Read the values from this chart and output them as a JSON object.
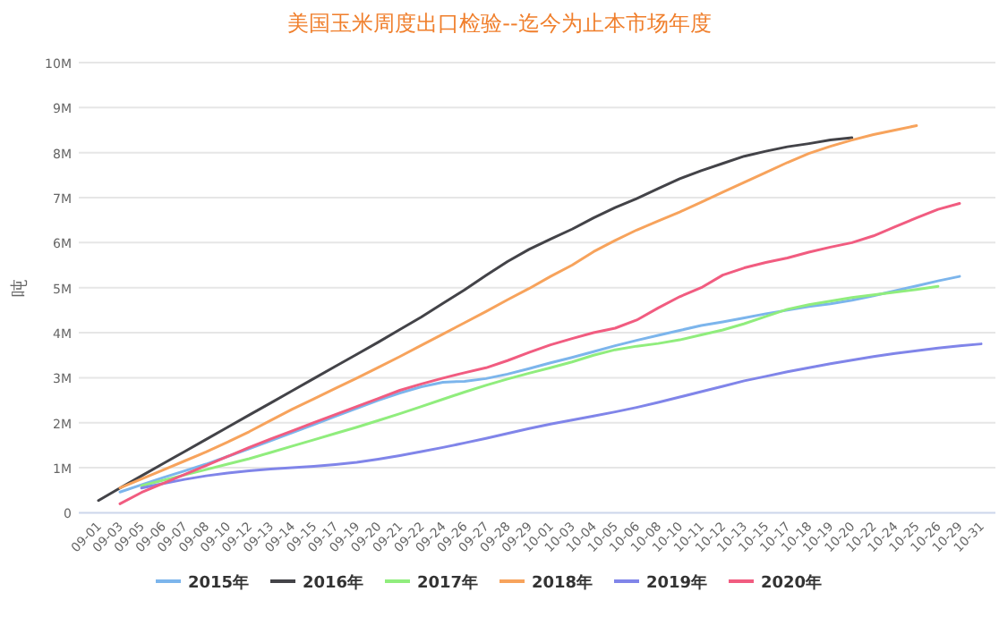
{
  "chart_data": {
    "type": "line",
    "title": "美国玉米周度出口检验--迄今为止本市场年度",
    "ylabel": "吨",
    "categories": [
      "09-01",
      "09-03",
      "09-05",
      "09-06",
      "09-07",
      "09-08",
      "09-10",
      "09-12",
      "09-13",
      "09-14",
      "09-15",
      "09-17",
      "09-19",
      "09-20",
      "09-21",
      "09-22",
      "09-24",
      "09-26",
      "09-27",
      "09-28",
      "09-29",
      "10-01",
      "10-03",
      "10-04",
      "10-05",
      "10-06",
      "10-08",
      "10-10",
      "10-11",
      "10-12",
      "10-13",
      "10-15",
      "10-17",
      "10-18",
      "10-19",
      "10-20",
      "10-22",
      "10-24",
      "10-25",
      "10-26",
      "10-29",
      "10-31"
    ],
    "ylim": [
      0,
      10000000
    ],
    "yticks": [
      0,
      {
        "value": 1000000,
        "label": "1M"
      },
      {
        "value": 2000000,
        "label": "2M"
      },
      {
        "value": 3000000,
        "label": "3M"
      },
      {
        "value": 4000000,
        "label": "4M"
      },
      {
        "value": 5000000,
        "label": "5M"
      },
      {
        "value": 6000000,
        "label": "6M"
      },
      {
        "value": 7000000,
        "label": "7M"
      },
      {
        "value": 8000000,
        "label": "8M"
      },
      {
        "value": 9000000,
        "label": "9M"
      },
      {
        "value": 10000000,
        "label": "10M"
      }
    ],
    "grid": "y",
    "legend": "bottom",
    "marker": "none",
    "series": [
      {
        "name": "2015年",
        "color": "#7cb5ec",
        "values": [
          null,
          460000,
          620000,
          780000,
          930000,
          1080000,
          1250000,
          1420000,
          1600000,
          1780000,
          1960000,
          2140000,
          2320000,
          2500000,
          2660000,
          2800000,
          2900000,
          2920000,
          2980000,
          3080000,
          3200000,
          3330000,
          3450000,
          3580000,
          3710000,
          3830000,
          3940000,
          4050000,
          4160000,
          4240000,
          4330000,
          4420000,
          4500000,
          4580000,
          4640000,
          4720000,
          4820000,
          4930000,
          5040000,
          5150000,
          5250000,
          null
        ]
      },
      {
        "name": "2016年",
        "color": "#434348",
        "values": [
          270000,
          550000,
          820000,
          1090000,
          1360000,
          1630000,
          1900000,
          2170000,
          2440000,
          2710000,
          2980000,
          3250000,
          3520000,
          3790000,
          4070000,
          4350000,
          4650000,
          4950000,
          5270000,
          5580000,
          5850000,
          6080000,
          6300000,
          6550000,
          6780000,
          6980000,
          7200000,
          7420000,
          7600000,
          7760000,
          7920000,
          8030000,
          8130000,
          8200000,
          8280000,
          8330000,
          null,
          null,
          null,
          null,
          null,
          null
        ]
      },
      {
        "name": "2017年",
        "color": "#90ed7d",
        "values": [
          null,
          null,
          600000,
          720000,
          840000,
          960000,
          1080000,
          1200000,
          1340000,
          1480000,
          1620000,
          1760000,
          1900000,
          2050000,
          2200000,
          2360000,
          2520000,
          2680000,
          2830000,
          2970000,
          3100000,
          3220000,
          3350000,
          3500000,
          3620000,
          3700000,
          3760000,
          3840000,
          3950000,
          4060000,
          4200000,
          4360000,
          4520000,
          4620000,
          4700000,
          4780000,
          4840000,
          4900000,
          4960000,
          5030000,
          null,
          null
        ]
      },
      {
        "name": "2018年",
        "color": "#f7a35c",
        "values": [
          null,
          550000,
          750000,
          950000,
          1150000,
          1350000,
          1570000,
          1800000,
          2050000,
          2300000,
          2530000,
          2760000,
          2990000,
          3230000,
          3470000,
          3720000,
          3970000,
          4220000,
          4470000,
          4730000,
          4980000,
          5250000,
          5500000,
          5800000,
          6050000,
          6280000,
          6480000,
          6680000,
          6900000,
          7120000,
          7340000,
          7560000,
          7780000,
          7980000,
          8140000,
          8280000,
          8400000,
          8500000,
          8600000,
          null,
          null,
          null
        ]
      },
      {
        "name": "2019年",
        "color": "#8085e9",
        "values": [
          null,
          null,
          550000,
          650000,
          740000,
          820000,
          880000,
          930000,
          970000,
          1000000,
          1030000,
          1070000,
          1120000,
          1190000,
          1270000,
          1360000,
          1450000,
          1550000,
          1650000,
          1760000,
          1870000,
          1970000,
          2060000,
          2150000,
          2240000,
          2340000,
          2450000,
          2570000,
          2690000,
          2810000,
          2930000,
          3030000,
          3130000,
          3220000,
          3310000,
          3390000,
          3470000,
          3540000,
          3600000,
          3660000,
          3710000,
          3750000
        ]
      },
      {
        "name": "2020年",
        "color": "#f15c80",
        "values": [
          null,
          200000,
          450000,
          650000,
          850000,
          1050000,
          1250000,
          1450000,
          1640000,
          1820000,
          2000000,
          2180000,
          2360000,
          2540000,
          2720000,
          2860000,
          2990000,
          3110000,
          3220000,
          3380000,
          3560000,
          3730000,
          3870000,
          4000000,
          4100000,
          4280000,
          4550000,
          4800000,
          5000000,
          5280000,
          5440000,
          5560000,
          5660000,
          5790000,
          5900000,
          6000000,
          6150000,
          6350000,
          6550000,
          6740000,
          6870000,
          null
        ]
      }
    ]
  }
}
